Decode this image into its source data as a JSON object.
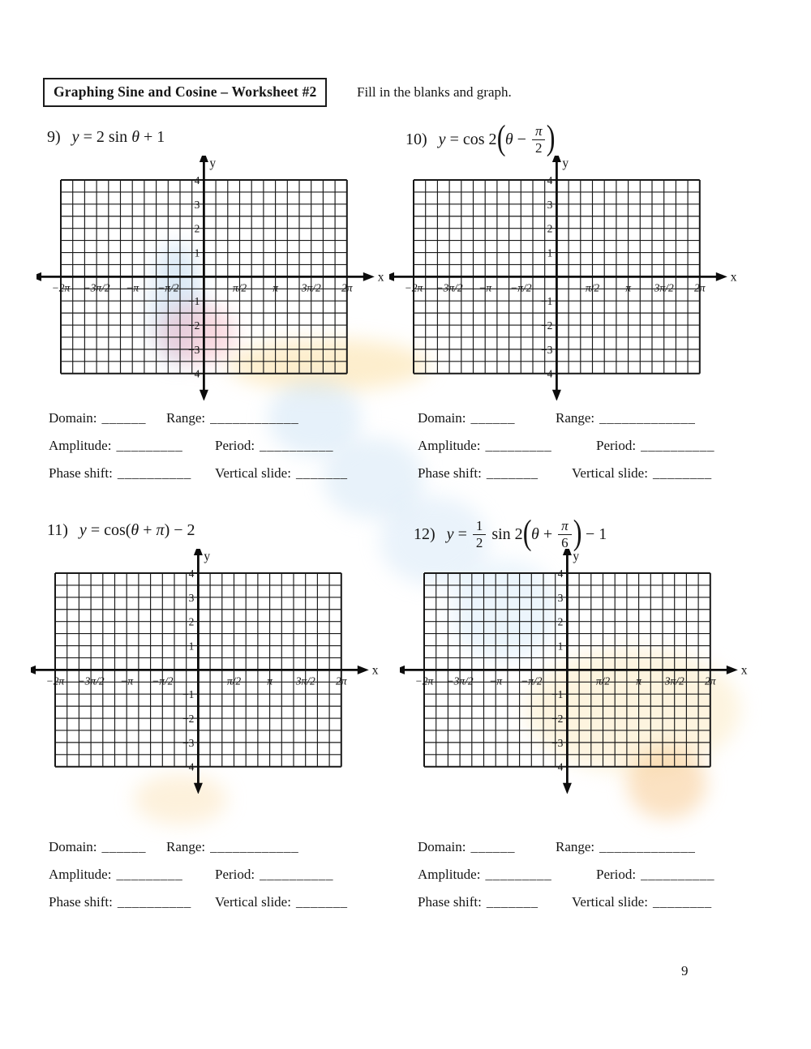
{
  "page": {
    "title": "Graphing Sine and Cosine – Worksheet #2",
    "subtitle": "Fill in the blanks and graph.",
    "page_number": "9"
  },
  "graph": {
    "cols": 24,
    "rows": 16,
    "x_axis_row": 8,
    "y_axis_col": 12,
    "x_axis_label": "x",
    "y_axis_label": "y",
    "x_ticks": [
      {
        "label": "−2π",
        "col": 0
      },
      {
        "label": "−3π/2",
        "col": 3
      },
      {
        "label": "−π",
        "col": 6
      },
      {
        "label": "−π/2",
        "col": 9
      },
      {
        "label": "π/2",
        "col": 15
      },
      {
        "label": "π",
        "col": 18
      },
      {
        "label": "3π/2",
        "col": 21
      },
      {
        "label": "2π",
        "col": 24
      }
    ],
    "y_ticks": [
      {
        "label": "4",
        "row": 0
      },
      {
        "label": "3",
        "row": 2
      },
      {
        "label": "2",
        "row": 4
      },
      {
        "label": "1",
        "row": 6
      },
      {
        "label": "−1",
        "row": 10
      },
      {
        "label": "−2",
        "row": 12
      },
      {
        "label": "−3",
        "row": 14
      },
      {
        "label": "−4",
        "row": 16
      }
    ]
  },
  "problems": [
    {
      "number": "9)",
      "eq": {
        "lhs": "y",
        "a": " = 2 sin ",
        "arg": "θ",
        "tail": " + 1"
      },
      "fields": {
        "domain_label": "Domain:",
        "domain_blank": "______",
        "range_label": "Range:",
        "range_blank": "____________",
        "amplitude_label": "Amplitude:",
        "amplitude_blank": "_________",
        "period_label": "Period:",
        "period_blank": "__________",
        "phase_label": "Phase shift:",
        "phase_blank": "__________",
        "vertical_label": "Vertical slide:",
        "vertical_blank": "_______"
      }
    },
    {
      "number": "10)",
      "eq": {
        "lhs": "y",
        "a": " = cos 2",
        "open": "(",
        "arg": "θ",
        "op": " − ",
        "frac_num": "π",
        "frac_den": "2",
        "close": ")"
      },
      "fields": {
        "domain_label": "Domain:",
        "domain_blank": "______",
        "range_label": "Range:",
        "range_blank": "_____________",
        "amplitude_label": "Amplitude:",
        "amplitude_blank": "_________",
        "period_label": "Period:",
        "period_blank": "__________",
        "phase_label": "Phase shift:",
        "phase_blank": "_______",
        "vertical_label": "Vertical slide:",
        "vertical_blank": "________"
      }
    },
    {
      "number": "11)",
      "eq": {
        "lhs": "y",
        "a": " = cos(",
        "arg1": "θ",
        "op": " + ",
        "arg2": "π",
        "tail": ") − 2"
      },
      "fields": {
        "domain_label": "Domain:",
        "domain_blank": "______",
        "range_label": "Range:",
        "range_blank": "____________",
        "amplitude_label": "Amplitude:",
        "amplitude_blank": "_________",
        "period_label": "Period:",
        "period_blank": "__________",
        "phase_label": "Phase shift:",
        "phase_blank": "__________",
        "vertical_label": "Vertical slide:",
        "vertical_blank": "_______"
      }
    },
    {
      "number": "12)",
      "eq": {
        "lhs": "y",
        "a": " = ",
        "frac1_num": "1",
        "frac1_den": "2",
        "b": " sin 2",
        "open": "(",
        "arg": "θ",
        "op": " + ",
        "frac2_num": "π",
        "frac2_den": "6",
        "close": ")",
        "tail": " − 1"
      },
      "fields": {
        "domain_label": "Domain:",
        "domain_blank": "______",
        "range_label": "Range:",
        "range_blank": "_____________",
        "amplitude_label": "Amplitude:",
        "amplitude_blank": "_________",
        "period_label": "Period:",
        "period_blank": "__________",
        "phase_label": "Phase shift:",
        "phase_blank": "_______",
        "vertical_label": "Vertical slide:",
        "vertical_blank": "________"
      }
    }
  ]
}
